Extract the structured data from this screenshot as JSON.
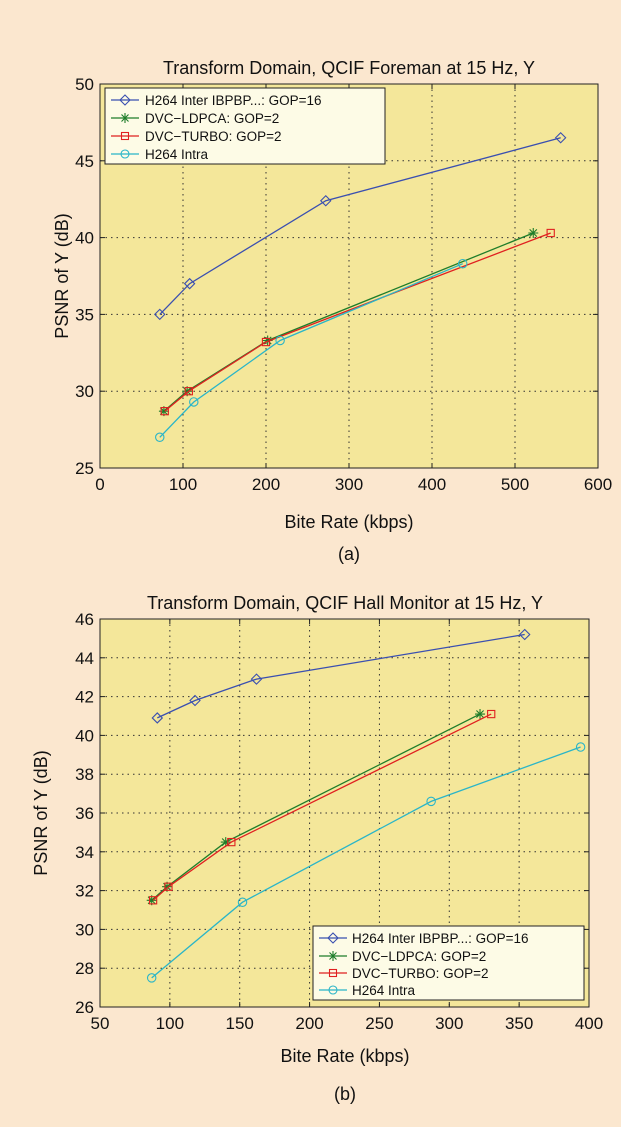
{
  "colors": {
    "page_background": "#fbe7cf",
    "plot_background": "#f4e79a",
    "grid": "#333333",
    "series": [
      "#3a4fb0",
      "#1e7d2a",
      "#e02020",
      "#2ab5c8"
    ]
  },
  "chart_data": [
    {
      "type": "line",
      "title": "Transform Domain, QCIF Foreman at 15 Hz, Y",
      "xlabel": "Bite Rate (kbps)",
      "ylabel": "PSNR of Y (dB)",
      "caption": "(a)",
      "xlim": [
        0,
        600
      ],
      "ylim": [
        25,
        50
      ],
      "xticks": [
        0,
        100,
        200,
        300,
        400,
        500,
        600
      ],
      "yticks": [
        25,
        30,
        35,
        40,
        45,
        50
      ],
      "grid": true,
      "legend_position": "top-left",
      "series": [
        {
          "name": "H264 Inter IBPBP...: GOP=16",
          "marker": "diamond",
          "x": [
            72,
            108,
            272,
            555
          ],
          "y": [
            35.0,
            37.0,
            42.4,
            46.5
          ]
        },
        {
          "name": "DVC−LDPCA: GOP=2",
          "marker": "star",
          "x": [
            77,
            105,
            202,
            522
          ],
          "y": [
            28.7,
            30.0,
            33.3,
            40.3
          ]
        },
        {
          "name": "DVC−TURBO: GOP=2",
          "marker": "square",
          "x": [
            78,
            107,
            200,
            543
          ],
          "y": [
            28.7,
            30.0,
            33.2,
            40.3
          ]
        },
        {
          "name": "H264 Intra",
          "marker": "circle",
          "x": [
            72,
            113,
            217,
            437
          ],
          "y": [
            27.0,
            29.3,
            33.3,
            38.3
          ]
        }
      ]
    },
    {
      "type": "line",
      "title": "Transform Domain, QCIF Hall Monitor at 15 Hz, Y",
      "xlabel": "Bite Rate (kbps)",
      "ylabel": "PSNR of Y (dB)",
      "caption": "(b)",
      "xlim": [
        50,
        400
      ],
      "ylim": [
        26,
        46
      ],
      "xticks": [
        50,
        100,
        150,
        200,
        250,
        300,
        350,
        400
      ],
      "yticks": [
        26,
        28,
        30,
        32,
        34,
        36,
        38,
        40,
        42,
        44,
        46
      ],
      "grid": true,
      "legend_position": "bottom-right",
      "series": [
        {
          "name": "H264 Inter IBPBP...: GOP=16",
          "marker": "diamond",
          "x": [
            91,
            118,
            162,
            354
          ],
          "y": [
            40.9,
            41.8,
            42.9,
            45.2
          ]
        },
        {
          "name": "DVC−LDPCA: GOP=2",
          "marker": "star",
          "x": [
            87,
            98,
            140,
            322
          ],
          "y": [
            31.5,
            32.2,
            34.5,
            41.1
          ]
        },
        {
          "name": "DVC−TURBO: GOP=2",
          "marker": "square",
          "x": [
            88,
            99,
            144,
            330
          ],
          "y": [
            31.5,
            32.2,
            34.5,
            41.1
          ]
        },
        {
          "name": "H264 Intra",
          "marker": "circle",
          "x": [
            87,
            152,
            287,
            394
          ],
          "y": [
            27.5,
            31.4,
            36.6,
            39.4
          ]
        }
      ]
    }
  ]
}
